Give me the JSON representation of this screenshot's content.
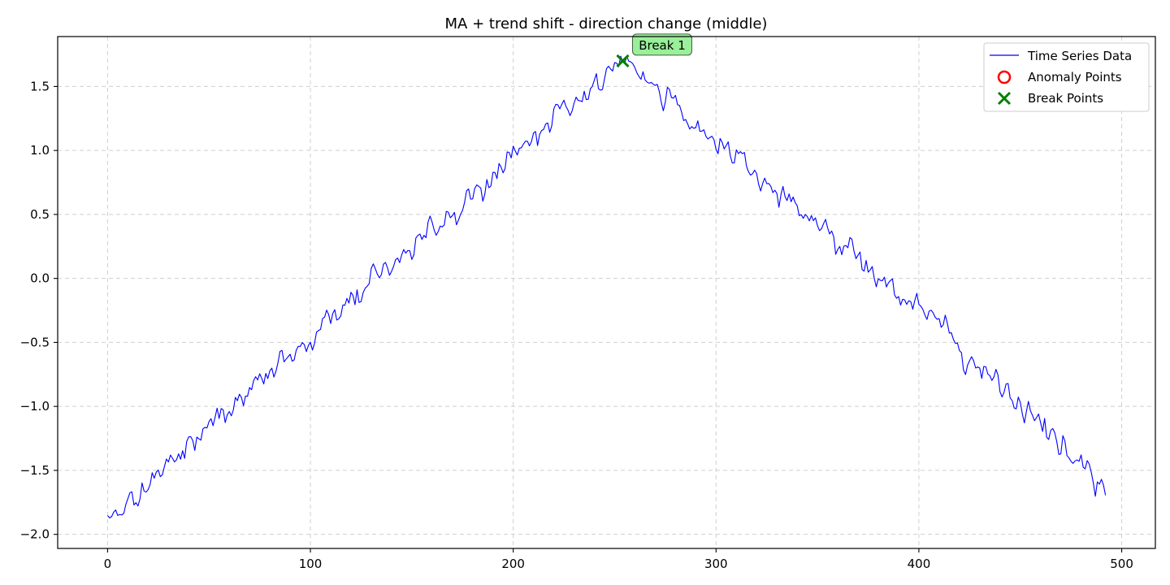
{
  "chart_data": {
    "type": "line",
    "title": "MA + trend shift - direction change (middle)",
    "xlabel": "",
    "ylabel": "",
    "xlim": [
      -24.6,
      516.6
    ],
    "ylim": [
      -2.11,
      1.89
    ],
    "x_ticks": [
      0,
      100,
      200,
      300,
      400,
      500
    ],
    "y_ticks": [
      -2.0,
      -1.5,
      -1.0,
      -0.5,
      0.0,
      0.5,
      1.0,
      1.5
    ],
    "x_tick_labels": [
      "0",
      "100",
      "200",
      "300",
      "400",
      "500"
    ],
    "y_tick_labels": [
      "−2.0",
      "−1.5",
      "−1.0",
      "−0.5",
      "0.0",
      "0.5",
      "1.0",
      "1.5"
    ],
    "grid": true,
    "legend_position": "top-right",
    "series": [
      {
        "name": "Time Series Data",
        "color": "#0000ff",
        "x_start": 0,
        "x_step": 1,
        "count": 493,
        "anchors": [
          [
            0,
            -1.88
          ],
          [
            100,
            -0.45
          ],
          [
            254,
            1.7
          ],
          [
            300,
            1.08
          ],
          [
            400,
            -0.23
          ],
          [
            492,
            -1.64
          ]
        ]
      }
    ],
    "anomaly_points": {
      "name": "Anomaly Points",
      "color": "#ff0000",
      "points": []
    },
    "break_points": {
      "name": "Break Points",
      "color": "#008000",
      "points": [
        {
          "x": 254,
          "y": 1.7,
          "label": "Break 1"
        }
      ]
    },
    "annotation_box_color": "#90ee90"
  }
}
